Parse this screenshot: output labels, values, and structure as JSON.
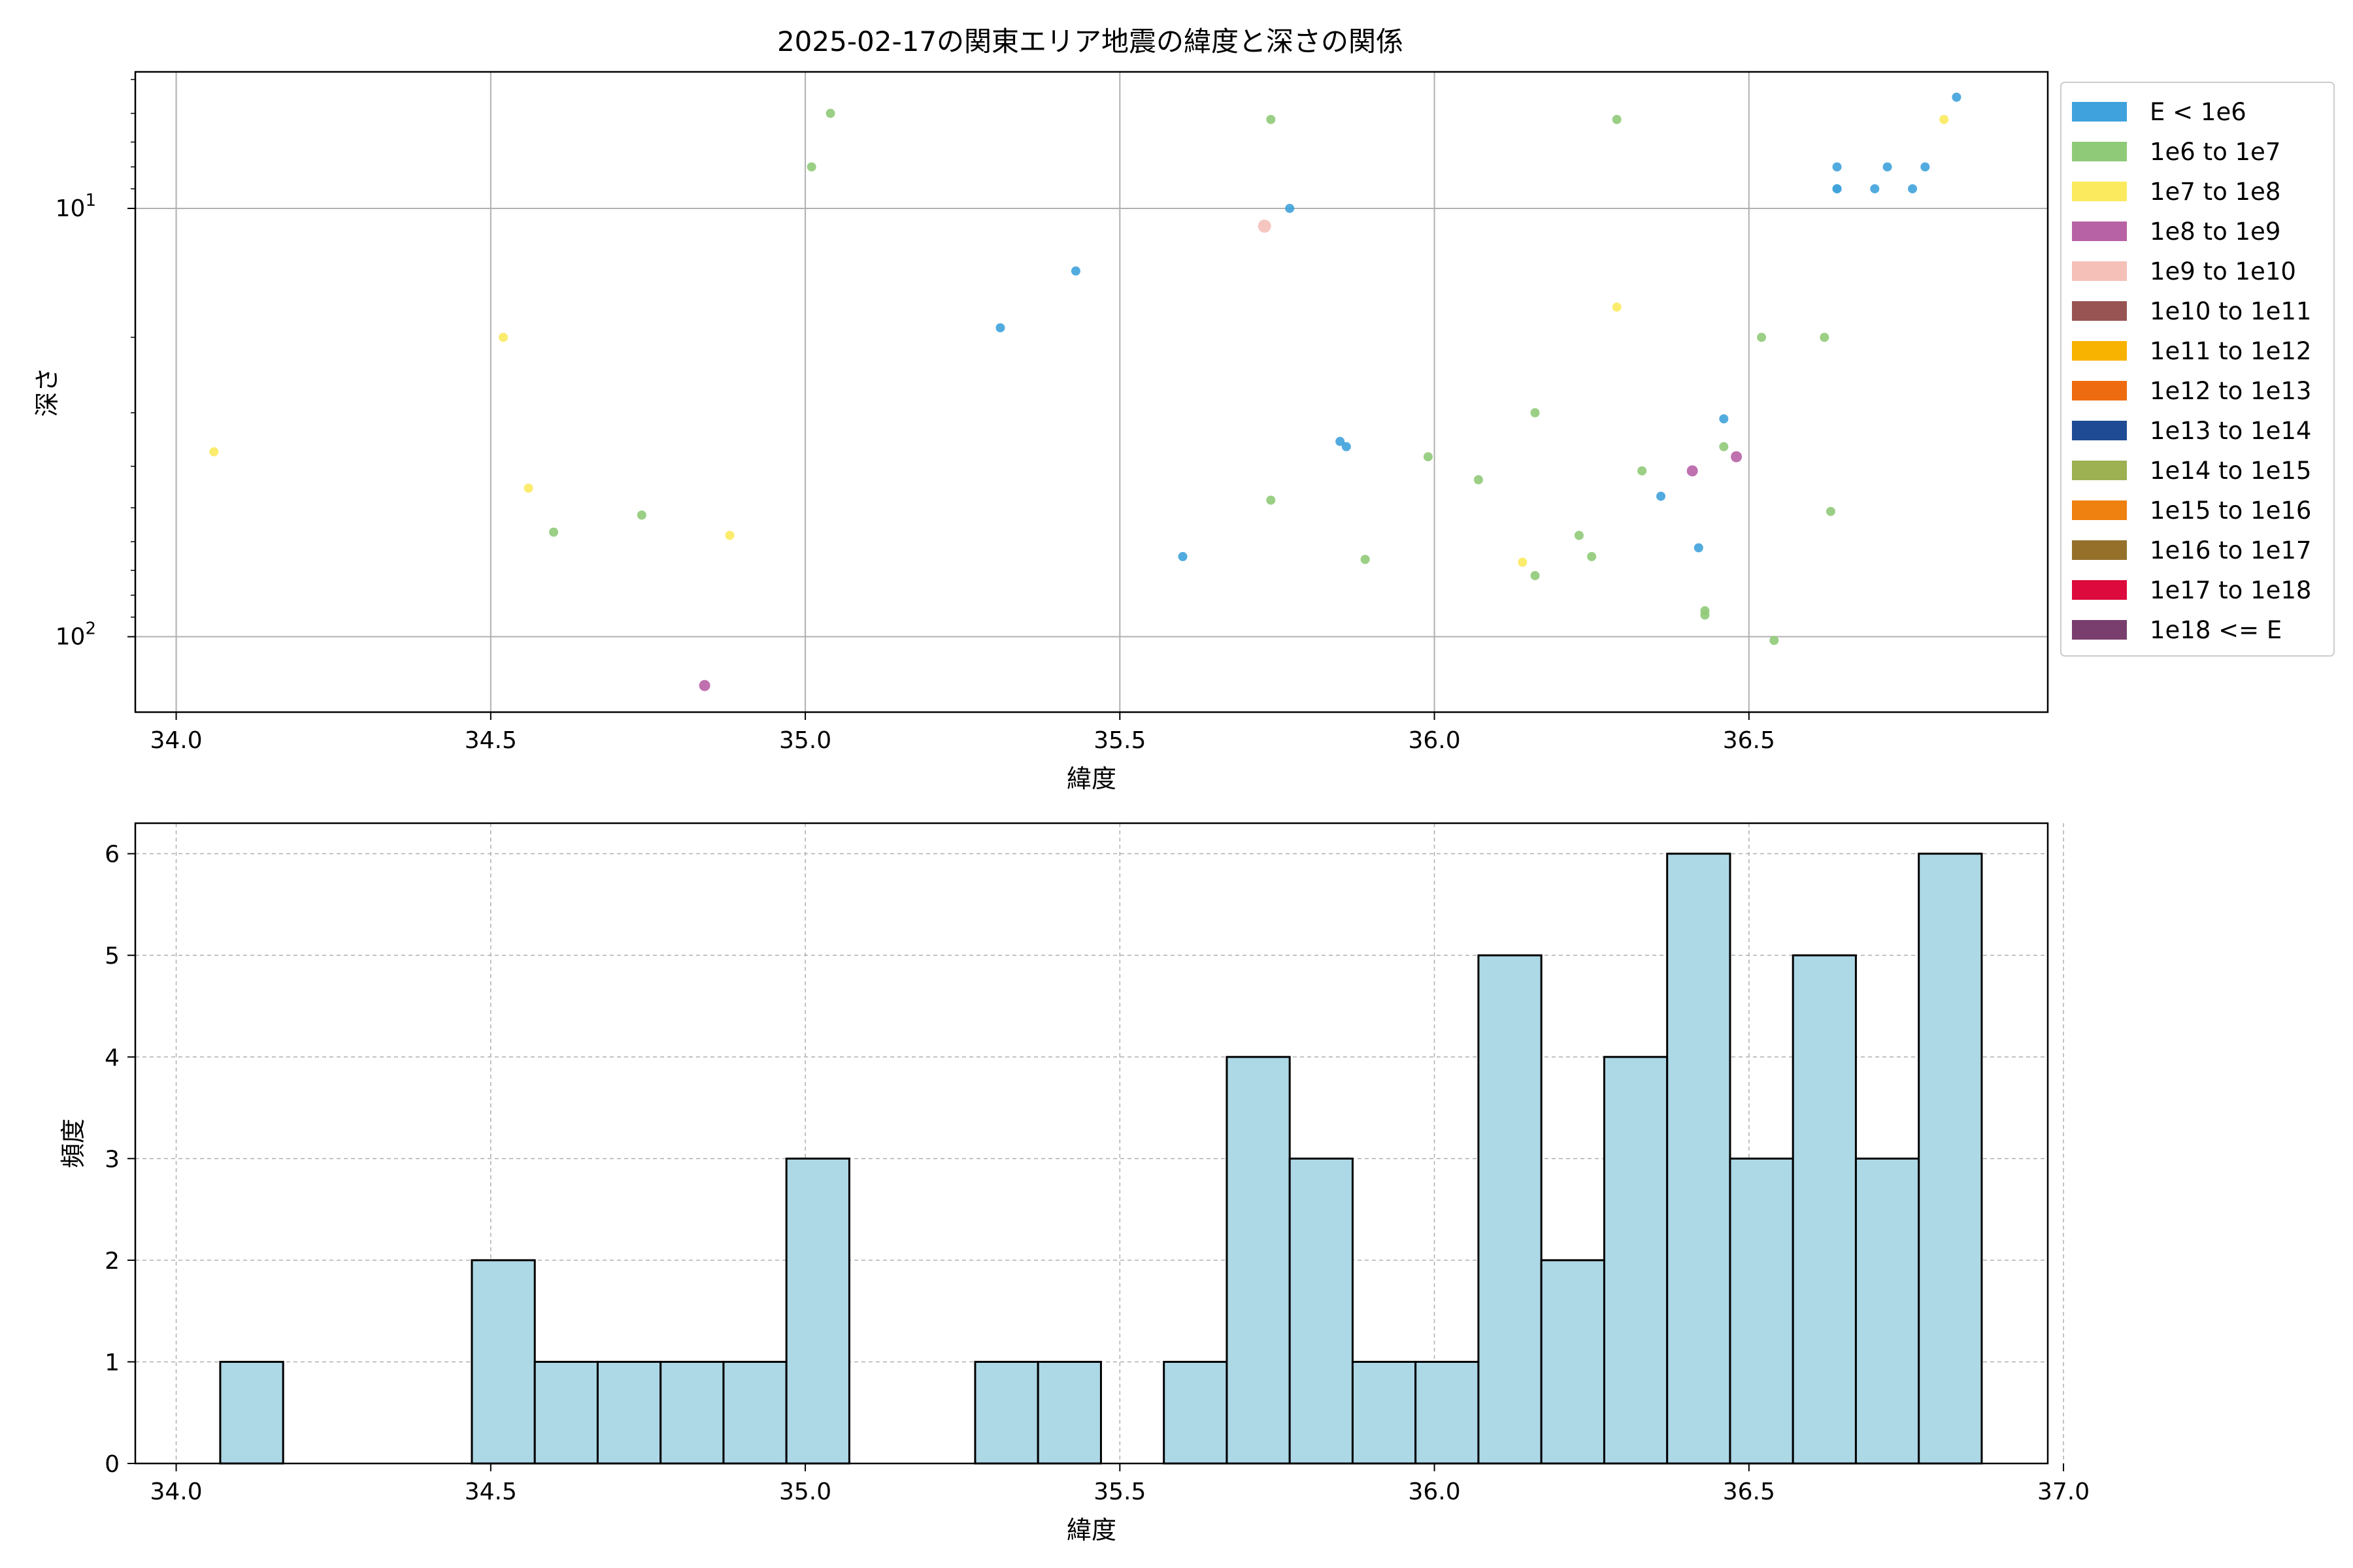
{
  "colors": {
    "background": "#ffffff",
    "grid": "#b0b0b0",
    "hist_bar": "#add8e6",
    "hist_edge": "#000000"
  },
  "chart_data": [
    {
      "type": "scatter",
      "title": "2025-02-17の関東エリア地震の緯度と深さの関係",
      "xlabel": "緯度",
      "ylabel": "深さ",
      "xlim": [
        33.935,
        36.975
      ],
      "ylim": [
        150,
        4.8
      ],
      "yscale": "log",
      "y_inverted": true,
      "x_ticks": [
        "34.0",
        "34.5",
        "35.0",
        "35.5",
        "36.0",
        "36.5"
      ],
      "y_ticks": [
        {
          "value": 10,
          "base": "10",
          "exp": "1"
        },
        {
          "value": 100,
          "base": "10",
          "exp": "2"
        }
      ],
      "grid": "major",
      "legend": {
        "position": "outside-right",
        "entries": [
          {
            "label": "E < 1e6",
            "color": "#3fa2dc"
          },
          {
            "label": "1e6 to 1e7",
            "color": "#8fca78"
          },
          {
            "label": "1e7 to 1e8",
            "color": "#fbea5e"
          },
          {
            "label": "1e8 to 1e9",
            "color": "#b862a6"
          },
          {
            "label": "1e9 to 1e10",
            "color": "#f4c0b8"
          },
          {
            "label": "1e10 to 1e11",
            "color": "#985453"
          },
          {
            "label": "1e11 to 1e12",
            "color": "#f8b200"
          },
          {
            "label": "1e12 to 1e13",
            "color": "#ee6b0f"
          },
          {
            "label": "1e13 to 1e14",
            "color": "#1e4b93"
          },
          {
            "label": "1e14 to 1e15",
            "color": "#9db052"
          },
          {
            "label": "1e15 to 1e16",
            "color": "#ef8110"
          },
          {
            "label": "1e16 to 1e17",
            "color": "#95702b"
          },
          {
            "label": "1e17 to 1e18",
            "color": "#dc0a3d"
          },
          {
            "label": "1e18 <= E",
            "color": "#7a3e6e"
          }
        ]
      },
      "series": [
        {
          "name": "E < 1e6",
          "color": "#3fa2dc",
          "points": [
            [
              35.31,
              19
            ],
            [
              35.43,
              14
            ],
            [
              35.6,
              65
            ],
            [
              35.77,
              10
            ],
            [
              35.85,
              35
            ],
            [
              35.86,
              36
            ],
            [
              36.36,
              47
            ],
            [
              36.42,
              62
            ],
            [
              36.46,
              31
            ],
            [
              36.64,
              8
            ],
            [
              36.64,
              9
            ],
            [
              36.64,
              9
            ],
            [
              36.7,
              9
            ],
            [
              36.72,
              8
            ],
            [
              36.76,
              9
            ],
            [
              36.78,
              8
            ],
            [
              36.83,
              5.5
            ]
          ]
        },
        {
          "name": "1e6 to 1e7",
          "color": "#8fca78",
          "points": [
            [
              35.01,
              8
            ],
            [
              35.04,
              6
            ],
            [
              34.6,
              57
            ],
            [
              34.74,
              52
            ],
            [
              35.74,
              6.2
            ],
            [
              35.74,
              48
            ],
            [
              35.89,
              66
            ],
            [
              35.99,
              38
            ],
            [
              36.07,
              43
            ],
            [
              36.16,
              30
            ],
            [
              36.16,
              72
            ],
            [
              36.23,
              58
            ],
            [
              36.25,
              65
            ],
            [
              36.29,
              6.2
            ],
            [
              36.33,
              41
            ],
            [
              36.43,
              87
            ],
            [
              36.43,
              89
            ],
            [
              36.46,
              36
            ],
            [
              36.52,
              20
            ],
            [
              36.54,
              102
            ],
            [
              36.62,
              20
            ],
            [
              36.63,
              51
            ]
          ]
        },
        {
          "name": "1e7 to 1e8",
          "color": "#fbea5e",
          "points": [
            [
              34.06,
              37
            ],
            [
              34.52,
              20
            ],
            [
              34.56,
              45
            ],
            [
              34.88,
              58
            ],
            [
              36.14,
              67
            ],
            [
              36.29,
              17
            ],
            [
              36.81,
              6.2
            ]
          ]
        },
        {
          "name": "1e8 to 1e9",
          "color": "#b862a6",
          "points": [
            [
              34.84,
              130
            ],
            [
              36.41,
              41
            ],
            [
              36.48,
              38
            ]
          ]
        },
        {
          "name": "1e9 to 1e10",
          "color": "#f4c0b8",
          "points": [
            [
              35.73,
              11
            ]
          ]
        }
      ]
    },
    {
      "type": "bar",
      "subtype": "histogram",
      "xlabel": "緯度",
      "ylabel": "頻度",
      "xlim": [
        33.935,
        36.975
      ],
      "ylim": [
        0,
        6.3
      ],
      "x_ticks": [
        "34.0",
        "34.5",
        "35.0",
        "35.5",
        "36.0",
        "36.5",
        "37.0"
      ],
      "y_ticks": [
        "0",
        "1",
        "2",
        "3",
        "4",
        "5",
        "6"
      ],
      "grid": "dashed",
      "bin_edges": [
        34.07,
        34.17,
        34.27,
        34.37,
        34.47,
        34.57,
        34.67,
        34.77,
        34.87,
        34.97,
        35.07,
        35.17,
        35.27,
        35.37,
        35.47,
        35.57,
        35.67,
        35.77,
        35.87,
        35.97,
        36.07,
        36.17,
        36.27,
        36.37,
        36.47,
        36.57,
        36.67,
        36.77,
        36.87
      ],
      "values": [
        1,
        0,
        0,
        0,
        2,
        1,
        1,
        1,
        1,
        3,
        0,
        0,
        1,
        1,
        0,
        1,
        4,
        3,
        1,
        1,
        5,
        2,
        4,
        6,
        3,
        5,
        3,
        6
      ]
    }
  ]
}
